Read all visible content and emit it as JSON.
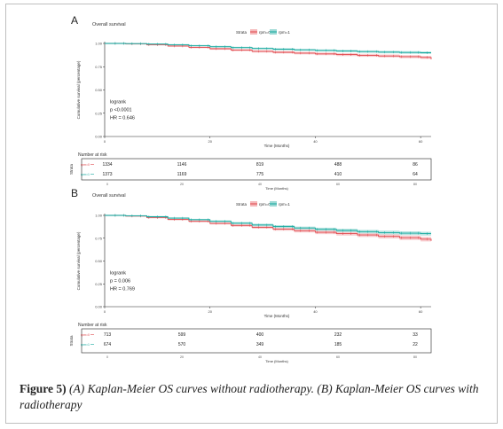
{
  "figure": {
    "caption_label": "Figure 5)",
    "caption_text": "(A) Kaplan-Meier OS curves without radiotherapy. (B) Kaplan-Meier OS curves with radiotherapy"
  },
  "common": {
    "ylabel": "Cumulative survival (percentage)",
    "xlabel": "Time (Months)",
    "strata_label": "Strata",
    "risk_title": "Number at risk",
    "risk_ylabel": "Strata",
    "logrank_label": "logrank"
  },
  "colors": {
    "group0": "#e0474c",
    "group1": "#13a89e",
    "band0": "#f5b7b9",
    "band1": "#9bd9d4"
  },
  "chart_data": [
    {
      "panel_label": "A",
      "title": "Overall survival",
      "type": "line",
      "legend_items": [
        "rpm=0",
        "rpm=1"
      ],
      "risk_labels": [
        "rpm=0",
        "rpm=1"
      ],
      "xlim": [
        0,
        62
      ],
      "ylim": [
        0,
        1
      ],
      "xticks": [
        "0",
        "20",
        "40",
        "60"
      ],
      "yticks": [
        "0.00",
        "0.25",
        "0.50",
        "0.75",
        "1.00"
      ],
      "pvalue_text": "p <0.0001",
      "hr_text": "HR = 0.646",
      "series": [
        {
          "name": "rpm=0",
          "x": [
            0,
            4,
            8,
            12,
            16,
            20,
            24,
            28,
            32,
            36,
            40,
            44,
            48,
            52,
            56,
            60,
            62
          ],
          "y": [
            1.0,
            0.995,
            0.985,
            0.972,
            0.958,
            0.943,
            0.928,
            0.915,
            0.905,
            0.896,
            0.888,
            0.88,
            0.872,
            0.865,
            0.858,
            0.85,
            0.83
          ]
        },
        {
          "name": "rpm=1",
          "x": [
            0,
            4,
            8,
            12,
            16,
            20,
            24,
            28,
            32,
            36,
            40,
            44,
            48,
            52,
            56,
            60,
            62
          ],
          "y": [
            1.0,
            0.998,
            0.993,
            0.985,
            0.975,
            0.965,
            0.955,
            0.946,
            0.938,
            0.931,
            0.925,
            0.918,
            0.912,
            0.907,
            0.903,
            0.9,
            0.9
          ]
        }
      ],
      "risk_table": {
        "times": [
          "0",
          "20",
          "40",
          "60",
          "80"
        ],
        "rows": [
          [
            "1334",
            "1146",
            "819",
            "488",
            "86"
          ],
          [
            "1373",
            "1169",
            "775",
            "410",
            "64"
          ]
        ]
      }
    },
    {
      "panel_label": "B",
      "title": "Overall survival",
      "type": "line",
      "legend_items": [
        "rpm=0",
        "rpm=1"
      ],
      "risk_labels": [
        "rpm=0",
        "rpm=1"
      ],
      "xlim": [
        0,
        62
      ],
      "ylim": [
        0,
        1
      ],
      "xticks": [
        "0",
        "20",
        "40",
        "60"
      ],
      "yticks": [
        "0.00",
        "0.25",
        "0.50",
        "0.75",
        "1.00"
      ],
      "pvalue_text": "p = 0.006",
      "hr_text": "HR = 0.769",
      "series": [
        {
          "name": "rpm=0",
          "x": [
            0,
            4,
            8,
            12,
            16,
            20,
            24,
            28,
            32,
            36,
            40,
            44,
            48,
            52,
            56,
            60,
            62
          ],
          "y": [
            1.0,
            0.992,
            0.975,
            0.955,
            0.935,
            0.912,
            0.89,
            0.87,
            0.85,
            0.832,
            0.815,
            0.8,
            0.785,
            0.77,
            0.755,
            0.74,
            0.72
          ]
        },
        {
          "name": "rpm=1",
          "x": [
            0,
            4,
            8,
            12,
            16,
            20,
            24,
            28,
            32,
            36,
            40,
            44,
            48,
            52,
            56,
            60,
            62
          ],
          "y": [
            1.0,
            0.996,
            0.985,
            0.97,
            0.953,
            0.935,
            0.915,
            0.895,
            0.878,
            0.862,
            0.848,
            0.835,
            0.822,
            0.812,
            0.805,
            0.8,
            0.8
          ]
        }
      ],
      "risk_table": {
        "times": [
          "0",
          "20",
          "40",
          "60",
          "80"
        ],
        "rows": [
          [
            "713",
            "599",
            "400",
            "232",
            "33"
          ],
          [
            "674",
            "570",
            "349",
            "185",
            "22"
          ]
        ]
      }
    }
  ]
}
